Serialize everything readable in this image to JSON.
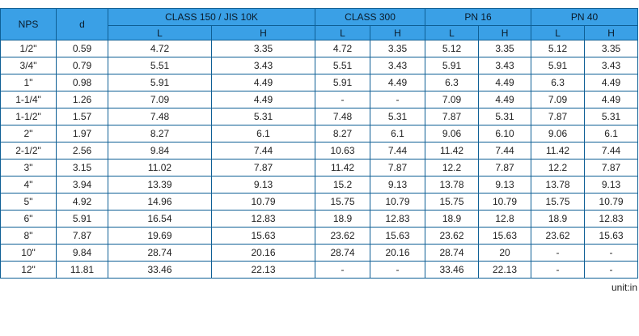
{
  "headers": {
    "nps": "NPS",
    "d": "d",
    "groups": [
      "CLASS 150 / JIS 10K",
      "CLASS 300",
      "PN 16",
      "PN 40"
    ],
    "L": "L",
    "H": "H"
  },
  "rows": [
    [
      "1/2\"",
      "0.59",
      "4.72",
      "3.35",
      "4.72",
      "3.35",
      "5.12",
      "3.35",
      "5.12",
      "3.35"
    ],
    [
      "3/4\"",
      "0.79",
      "5.51",
      "3.43",
      "5.51",
      "3.43",
      "5.91",
      "3.43",
      "5.91",
      "3.43"
    ],
    [
      "1\"",
      "0.98",
      "5.91",
      "4.49",
      "5.91",
      "4.49",
      "6.3",
      "4.49",
      "6.3",
      "4.49"
    ],
    [
      "1-1/4\"",
      "1.26",
      "7.09",
      "4.49",
      "-",
      "-",
      "7.09",
      "4.49",
      "7.09",
      "4.49"
    ],
    [
      "1-1/2\"",
      "1.57",
      "7.48",
      "5.31",
      "7.48",
      "5.31",
      "7.87",
      "5.31",
      "7.87",
      "5.31"
    ],
    [
      "2\"",
      "1.97",
      "8.27",
      "6.1",
      "8.27",
      "6.1",
      "9.06",
      "6.10",
      "9.06",
      "6.1"
    ],
    [
      "2-1/2\"",
      "2.56",
      "9.84",
      "7.44",
      "10.63",
      "7.44",
      "11.42",
      "7.44",
      "11.42",
      "7.44"
    ],
    [
      "3\"",
      "3.15",
      "11.02",
      "7.87",
      "11.42",
      "7.87",
      "12.2",
      "7.87",
      "12.2",
      "7.87"
    ],
    [
      "4\"",
      "3.94",
      "13.39",
      "9.13",
      "15.2",
      "9.13",
      "13.78",
      "9.13",
      "13.78",
      "9.13"
    ],
    [
      "5\"",
      "4.92",
      "14.96",
      "10.79",
      "15.75",
      "10.79",
      "15.75",
      "10.79",
      "15.75",
      "10.79"
    ],
    [
      "6\"",
      "5.91",
      "16.54",
      "12.83",
      "18.9",
      "12.83",
      "18.9",
      "12.8",
      "18.9",
      "12.83"
    ],
    [
      "8\"",
      "7.87",
      "19.69",
      "15.63",
      "23.62",
      "15.63",
      "23.62",
      "15.63",
      "23.62",
      "15.63"
    ],
    [
      "10\"",
      "9.84",
      "28.74",
      "20.16",
      "28.74",
      "20.16",
      "28.74",
      "20",
      "-",
      "-"
    ],
    [
      "12\"",
      "11.81",
      "33.46",
      "22.13",
      "-",
      "-",
      "33.46",
      "22.13",
      "-",
      "-"
    ]
  ],
  "unit": "unit:in"
}
